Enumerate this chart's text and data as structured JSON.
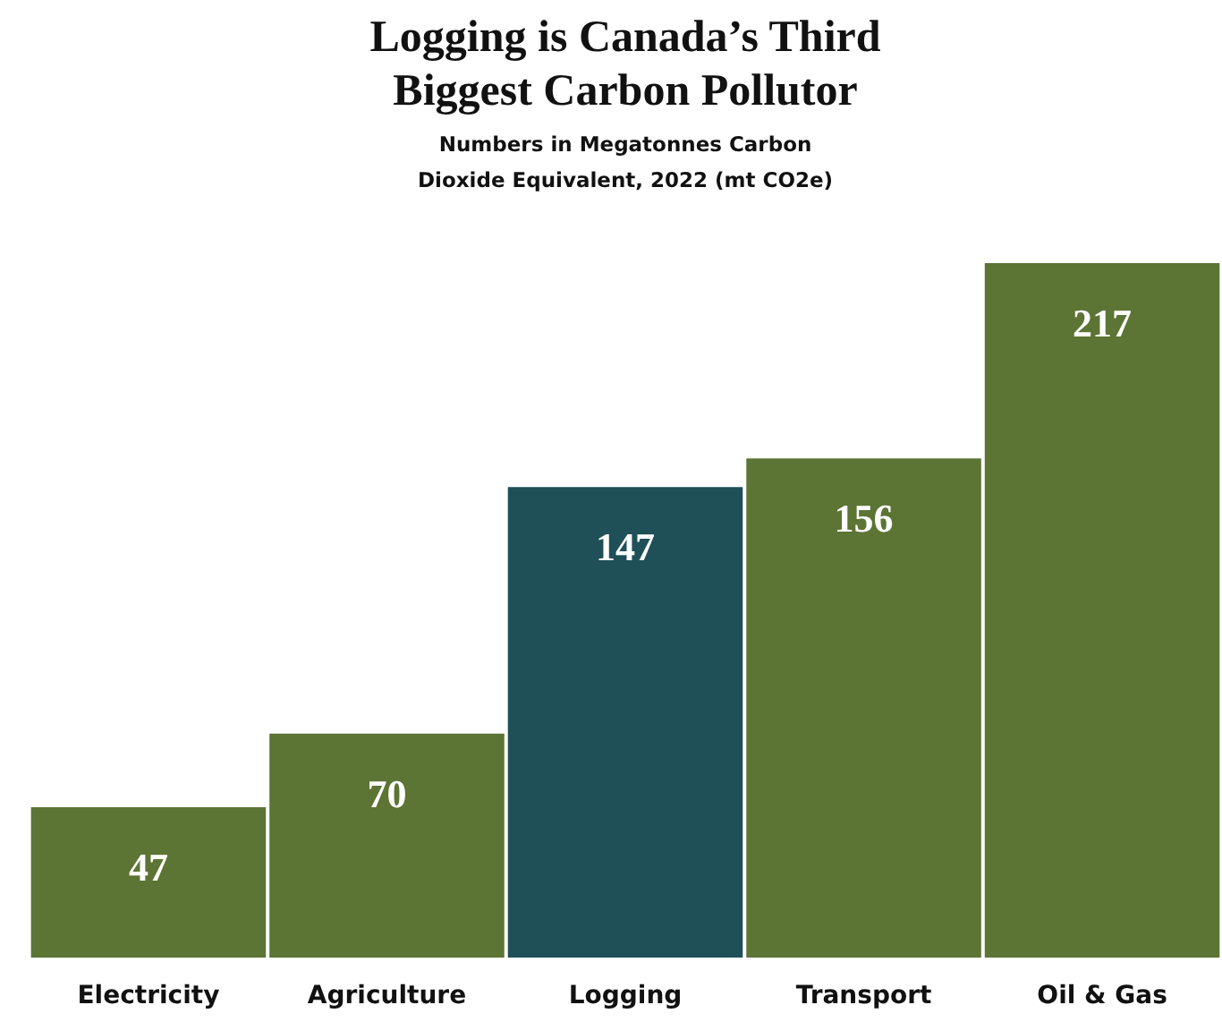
{
  "chart_data": {
    "type": "bar",
    "title": "Logging is Canada’s Third Biggest Carbon Pollutor",
    "subtitle": "Numbers in Megatonnes Carbon Dioxide Equivalent, 2022 (mt CO2e)",
    "categories": [
      "Electricity",
      "Agriculture",
      "Logging",
      "Transport",
      "Oil & Gas"
    ],
    "values": [
      47,
      70,
      147,
      156,
      217
    ],
    "colors": [
      "#5c7434",
      "#5c7434",
      "#1f4f57",
      "#5c7434",
      "#5c7434"
    ],
    "data_labels": true
  }
}
